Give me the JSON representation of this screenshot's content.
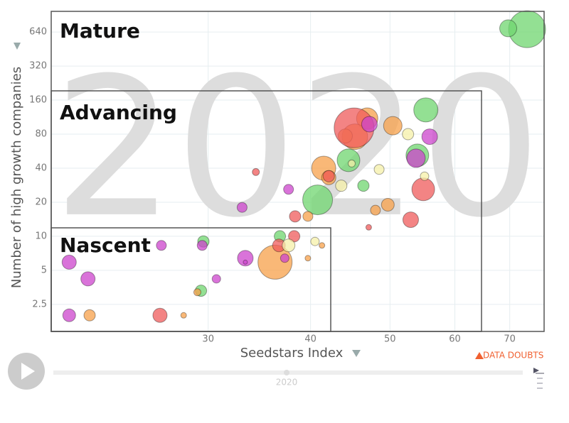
{
  "chart_data": {
    "type": "scatter",
    "watermark": "2020",
    "x_label": "Seedstars Index",
    "y_label": "Number of high growth companies",
    "xscale": "log",
    "yscale": "log",
    "xlim": [
      19.3,
      77.1
    ],
    "xticks": [
      30,
      40,
      50,
      60,
      70
    ],
    "ylim": [
      1.44,
      975
    ],
    "yticks": [
      2.5,
      5,
      10,
      20,
      40,
      80,
      160,
      320,
      640
    ],
    "grid": true,
    "annotations": [
      "Mature",
      "Advancing",
      "Nascent"
    ],
    "warning": "DATA DOUBTS",
    "slider_label": "2020",
    "series": [
      {
        "color": "#6fd66f",
        "x": [
          73.5,
          69.7,
          55.3,
          54.0,
          44.5,
          46.4,
          40.8,
          36.7,
          29.6,
          29.4
        ],
        "values": [
          678,
          690,
          131,
          52,
          47,
          28,
          21,
          10,
          9.0,
          3.3
        ],
        "sizes": [
          26,
          12,
          17,
          16,
          16,
          8,
          21,
          8,
          8,
          8
        ]
      },
      {
        "color": "#f7a04a",
        "x": [
          46.9,
          45.3,
          44.1,
          50.4,
          41.5,
          42.1,
          39.7,
          48.0,
          49.7,
          41.3,
          39.7,
          36.2,
          29.1,
          21.5,
          28.0
        ],
        "values": [
          110,
          76,
          77,
          95,
          40,
          33,
          15,
          17,
          19,
          8.3,
          6.4,
          5.9,
          3.2,
          2.0,
          2.0
        ],
        "sizes": [
          15,
          18,
          10,
          13,
          17,
          10,
          7,
          7,
          9,
          4,
          4,
          24,
          5,
          8,
          4
        ]
      },
      {
        "color": "#ef5b5b",
        "x": [
          45.2,
          42.1,
          54.9,
          34.3,
          38.3,
          53.0,
          47.1,
          38.2,
          36.6,
          26.2
        ],
        "values": [
          91,
          34,
          26,
          37,
          15,
          14,
          12,
          10,
          8.3,
          2.0
        ],
        "sizes": [
          28,
          8,
          16,
          5,
          8,
          11,
          4,
          8,
          9,
          10
        ]
      },
      {
        "color": "#cc44cc",
        "x": [
          47.2,
          55.9,
          53.8,
          37.6,
          33.0,
          37.2,
          33.3,
          26.3,
          29.5,
          30.7,
          20.3,
          21.4,
          20.3,
          33.3
        ],
        "values": [
          98,
          76,
          49,
          26,
          18,
          6.4,
          6.4,
          8.3,
          8.3,
          4.2,
          5.9,
          4.2,
          2.0,
          5.9
        ],
        "sizes": [
          11,
          11,
          13,
          7,
          7,
          6,
          11,
          7,
          7,
          6,
          10,
          10,
          9,
          3
        ]
      },
      {
        "color": "#f5f0a8",
        "x": [
          52.6,
          44.9,
          48.5,
          43.6,
          55.1,
          37.6,
          40.5
        ],
        "values": [
          80,
          44,
          39,
          28,
          34,
          8.3,
          9.0
        ],
        "sizes": [
          8,
          5,
          7,
          8,
          6,
          9,
          6
        ]
      }
    ]
  }
}
